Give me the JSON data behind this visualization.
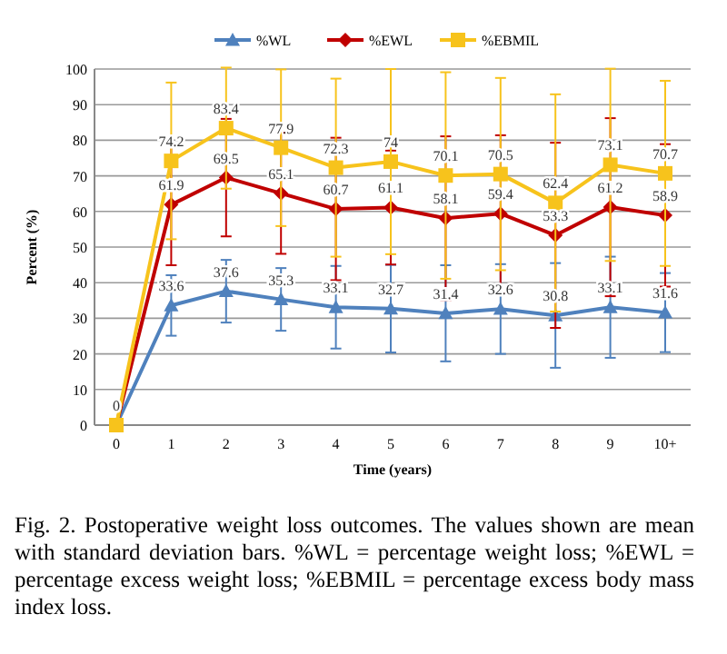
{
  "chart_data": {
    "type": "line",
    "xlabel": "Time (years)",
    "ylabel": "Percent (%)",
    "categories": [
      "0",
      "1",
      "2",
      "3",
      "4",
      "5",
      "6",
      "7",
      "8",
      "9",
      "10+"
    ],
    "ylim": [
      0,
      100
    ],
    "yticks": [
      0,
      10,
      20,
      30,
      40,
      50,
      60,
      70,
      80,
      90,
      100
    ],
    "grid": "y",
    "legend": "top",
    "series": [
      {
        "name": "%WL",
        "color": "#4f81bd",
        "marker": "triangle",
        "values": [
          0,
          33.6,
          37.6,
          35.3,
          33.1,
          32.7,
          31.4,
          32.6,
          30.8,
          33.1,
          31.6
        ],
        "value_labels": [
          "0",
          "33.6",
          "37.6",
          "35.3",
          "33.1",
          "32.7",
          "31.4",
          "32.6",
          "30.8",
          "33.1",
          "31.6"
        ],
        "errors": [
          null,
          8.5,
          8.8,
          8.8,
          11.6,
          12.3,
          13.5,
          12.6,
          14.7,
          14.2,
          11.1
        ]
      },
      {
        "name": "%EWL",
        "color": "#c00000",
        "marker": "diamond",
        "values": [
          0,
          61.9,
          69.5,
          65.1,
          60.7,
          61.1,
          58.1,
          59.4,
          53.3,
          61.2,
          58.9
        ],
        "value_labels": [
          null,
          "61.9",
          "69.5",
          "65.1",
          "60.7",
          "61.1",
          "58.1",
          "59.4",
          "53.3",
          "61.2",
          "58.9"
        ],
        "errors": [
          null,
          17,
          16.5,
          17,
          20,
          16,
          23,
          22,
          26,
          25,
          20
        ]
      },
      {
        "name": "%EBMIL",
        "color": "#f7c31c",
        "marker": "square",
        "values": [
          0,
          74.2,
          83.4,
          77.9,
          72.3,
          74,
          70.1,
          70.5,
          62.4,
          73.1,
          70.7
        ],
        "value_labels": [
          null,
          "74.2",
          "83.4",
          "77.9",
          "72.3",
          "74",
          "70.1",
          "70.5",
          "62.4",
          "73.1",
          "70.7"
        ],
        "errors": [
          null,
          22,
          17,
          22,
          25,
          26,
          29,
          27,
          30.5,
          27,
          26
        ]
      }
    ],
    "annotations": [
      "Fig. 2. Postoperative weight loss outcomes. The values shown are mean with standard deviation bars. %WL = percentage weight loss; %EWL = percentage excess weight loss; %EBMIL = percentage excess body mass index loss."
    ]
  }
}
